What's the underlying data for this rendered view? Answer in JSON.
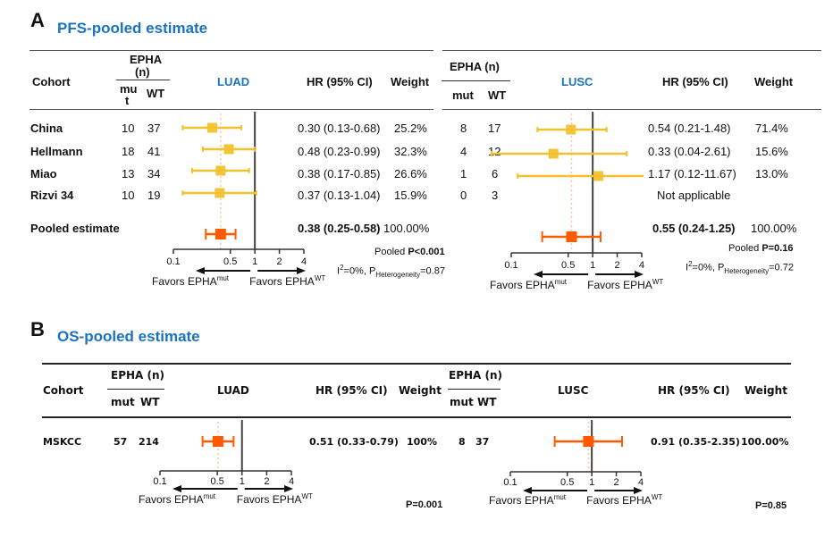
{
  "panelA": {
    "letter": "A",
    "title": "PFS-pooled estimate",
    "headers": {
      "cohort": "Cohort",
      "epha": "EPHA (n)",
      "epha_wrapped_1": "EPHA",
      "epha_wrapped_2": "(n)",
      "mut": "mu",
      "mut2": "t",
      "mut_full": "mut",
      "wt": "WT",
      "luad": "LUAD",
      "lusc": "LUSC",
      "hr": "HR (95% CI)",
      "weight": "Weight"
    },
    "rows": [
      {
        "cohort": "China",
        "luad": {
          "mut": "10",
          "wt": "37",
          "hr_text": "0.30 (0.13-0.68)",
          "weight": "25.2%"
        },
        "lusc": {
          "mut": "8",
          "wt": "17",
          "hr_text": "0.54 (0.21-1.48)",
          "weight": "71.4%"
        }
      },
      {
        "cohort": "Hellmann",
        "luad": {
          "mut": "18",
          "wt": "41",
          "hr_text": "0.48 (0.23-0.99)",
          "weight": "32.3%"
        },
        "lusc": {
          "mut": "4",
          "wt": "12",
          "hr_text": "0.33 (0.04-2.61)",
          "weight": "15.6%"
        }
      },
      {
        "cohort": "Miao",
        "luad": {
          "mut": "13",
          "wt": "34",
          "hr_text": "0.38 (0.17-0.85)",
          "weight": "26.6%"
        },
        "lusc": {
          "mut": "1",
          "wt": "6",
          "hr_text": "1.17 (0.12-11.67)",
          "weight": "13.0%"
        }
      },
      {
        "cohort": "Rizvi 34",
        "luad": {
          "mut": "10",
          "wt": "19",
          "hr_text": "0.37 (0.13-1.04)",
          "weight": "15.9%"
        },
        "lusc": {
          "mut": "0",
          "wt": "3",
          "hr_text": "Not applicable",
          "weight": ""
        }
      }
    ],
    "pooled": {
      "label": "Pooled estimate",
      "luad": {
        "hr_text": "0.38 (0.25-0.58)",
        "weight": "100.00%",
        "p_label": "Pooled ",
        "p_value": "P<0.001",
        "i2": "I",
        "i2_sup": "2",
        "i2_rest": "=0%, P",
        "het_sub": "Heterogeneity",
        "het_val": "=0.87"
      },
      "lusc": {
        "hr_text": "0.55 (0.24-1.25)",
        "weight": "100.00%",
        "p_label": "Pooled ",
        "p_value": "P=0.16",
        "i2": "I",
        "i2_sup": "2",
        "i2_rest": "=0%, P",
        "het_sub": "Heterogeneity",
        "het_val": "=0.72"
      }
    }
  },
  "panelB": {
    "letter": "B",
    "title": "OS-pooled estimate",
    "headers": {
      "cohort": "Cohort",
      "epha": "EPHA (n)",
      "mut": "mut",
      "wt": "WT",
      "luad": "LUAD",
      "lusc": "LUSC",
      "hr": "HR (95% CI)",
      "weight": "Weight"
    },
    "row": {
      "cohort": "MSKCC",
      "luad": {
        "mut": "57",
        "wt": "214",
        "hr_text": "0.51 (0.33-0.79)",
        "weight": "100%",
        "p": "P=0.001"
      },
      "lusc": {
        "mut": "8",
        "wt": "37",
        "hr_text": "0.91 (0.35-2.35)",
        "weight": "100.00%",
        "p": "P=0.85"
      }
    }
  },
  "axis": {
    "ticks": [
      "0.1",
      "0.5",
      "1",
      "2",
      "4"
    ],
    "favors_left": "Favors EPHA",
    "favors_left_sup": "mut",
    "favors_right": "Favors EPHA",
    "favors_right_sup": "WT"
  },
  "colors": {
    "study": "#f2c12e",
    "pooled": "#ff5a00",
    "ref_dotted": "#f7c9a0",
    "title_blue": "#1a73c0"
  },
  "chart_data": [
    {
      "type": "forest",
      "title": "PFS-pooled estimate — LUAD",
      "xscale": "log",
      "xlim": [
        0.1,
        4
      ],
      "xticks": [
        0.1,
        0.5,
        1,
        2,
        4
      ],
      "studies": [
        {
          "name": "China",
          "hr": 0.3,
          "lo": 0.13,
          "hi": 0.68,
          "weight": 25.2
        },
        {
          "name": "Hellmann",
          "hr": 0.48,
          "lo": 0.23,
          "hi": 0.99,
          "weight": 32.3
        },
        {
          "name": "Miao",
          "hr": 0.38,
          "lo": 0.17,
          "hi": 0.85,
          "weight": 26.6
        },
        {
          "name": "Rizvi 34",
          "hr": 0.37,
          "lo": 0.13,
          "hi": 1.04,
          "weight": 15.9
        }
      ],
      "pooled": {
        "hr": 0.38,
        "lo": 0.25,
        "hi": 0.58,
        "p": "<0.001",
        "i2": 0,
        "p_het": 0.87
      }
    },
    {
      "type": "forest",
      "title": "PFS-pooled estimate — LUSC",
      "xscale": "log",
      "xlim": [
        0.1,
        4
      ],
      "xticks": [
        0.1,
        0.5,
        1,
        2,
        4
      ],
      "studies": [
        {
          "name": "China",
          "hr": 0.54,
          "lo": 0.21,
          "hi": 1.48,
          "weight": 71.4
        },
        {
          "name": "Hellmann",
          "hr": 0.33,
          "lo": 0.04,
          "hi": 2.61,
          "weight": 15.6
        },
        {
          "name": "Miao",
          "hr": 1.17,
          "lo": 0.12,
          "hi": 11.67,
          "weight": 13.0
        },
        {
          "name": "Rizvi 34",
          "hr": null,
          "lo": null,
          "hi": null,
          "weight": null
        }
      ],
      "pooled": {
        "hr": 0.55,
        "lo": 0.24,
        "hi": 1.25,
        "p": "0.16",
        "i2": 0,
        "p_het": 0.72
      }
    },
    {
      "type": "forest",
      "title": "OS-pooled estimate — LUAD",
      "xscale": "log",
      "xlim": [
        0.1,
        4
      ],
      "xticks": [
        0.1,
        0.5,
        1,
        2,
        4
      ],
      "studies": [],
      "pooled": {
        "name": "MSKCC",
        "hr": 0.51,
        "lo": 0.33,
        "hi": 0.79,
        "p": "0.001"
      }
    },
    {
      "type": "forest",
      "title": "OS-pooled estimate — LUSC",
      "xscale": "log",
      "xlim": [
        0.1,
        4
      ],
      "xticks": [
        0.1,
        0.5,
        1,
        2,
        4
      ],
      "studies": [],
      "pooled": {
        "name": "MSKCC",
        "hr": 0.91,
        "lo": 0.35,
        "hi": 2.35,
        "p": "0.85"
      }
    }
  ]
}
